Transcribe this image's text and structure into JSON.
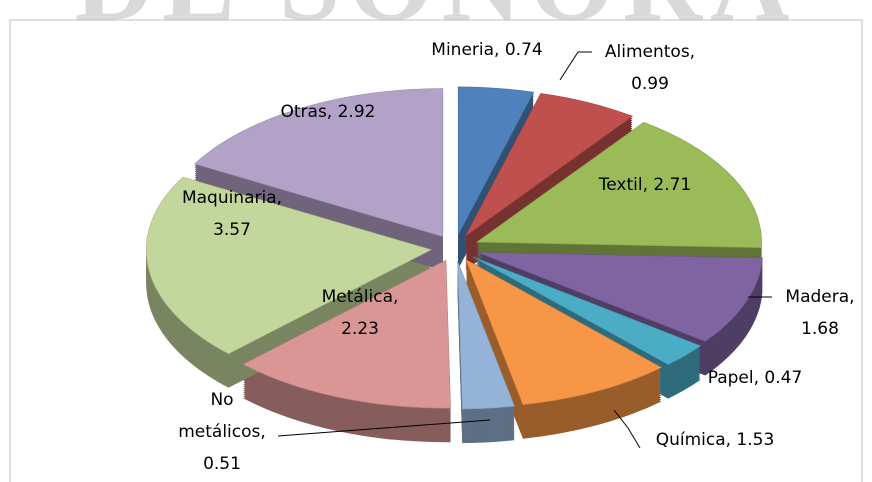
{
  "watermark": "DE SONORA",
  "chart_data": {
    "type": "pie",
    "values": [
      0.74,
      0.99,
      2.71,
      1.68,
      0.47,
      1.53,
      0.51,
      2.23,
      3.57,
      2.92
    ],
    "value_labels": [
      "Mineria, 0.74",
      "Alimentos,\n0.99",
      "Textil, 2.71",
      "Madera,\n1.68",
      "Papel, 0.47",
      "Química, 1.53",
      "No\nmetálicos,\n0.51",
      "Metálica,\n2.23",
      "Maquinaria,\n3.57",
      "Otras, 2.92"
    ],
    "colors": [
      "#4f81bd",
      "#c0504d",
      "#9bbb59",
      "#8064a2",
      "#4bacc6",
      "#f79646",
      "#95b3d7",
      "#d99694",
      "#c3d69b",
      "#b3a2c7"
    ]
  }
}
